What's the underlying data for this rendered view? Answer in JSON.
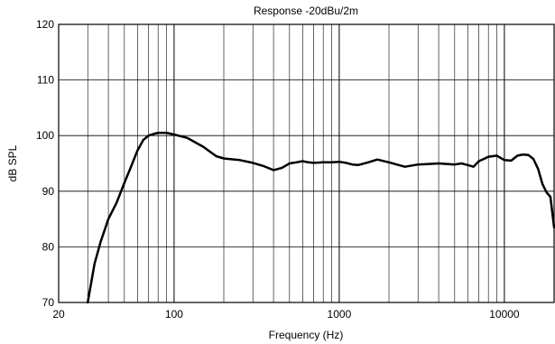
{
  "chart_data": {
    "type": "line",
    "title": "Response -20dBu/2m",
    "xlabel": "Frequency (Hz)",
    "ylabel": "dB SPL",
    "x_scale": "log",
    "xlim": [
      20,
      20000
    ],
    "ylim": [
      70,
      120
    ],
    "x_ticks": [
      20,
      100,
      1000,
      10000
    ],
    "x_tick_labels": [
      "20",
      "100",
      "1000",
      "10000"
    ],
    "y_ticks": [
      70,
      80,
      90,
      100,
      110,
      120
    ],
    "y_tick_labels": [
      "70",
      "80",
      "90",
      "100",
      "110",
      "120"
    ],
    "grid": true,
    "line_color": "#000000",
    "series": [
      {
        "x": [
          30,
          33,
          36,
          40,
          45,
          50,
          55,
          60,
          65,
          70,
          75,
          80,
          90,
          100,
          120,
          150,
          180,
          200,
          250,
          300,
          350,
          400,
          450,
          500,
          550,
          600,
          650,
          700,
          800,
          900,
          1000,
          1100,
          1200,
          1300,
          1500,
          1700,
          2000,
          2500,
          3000,
          3500,
          4000,
          4500,
          5000,
          5500,
          6000,
          6500,
          7000,
          7500,
          8000,
          9000,
          10000,
          11000,
          12000,
          13000,
          14000,
          15000,
          16000,
          17000,
          18000,
          19000,
          20000
        ],
        "y": [
          70,
          77,
          81,
          85,
          88,
          91.5,
          94.5,
          97.3,
          99.2,
          100,
          100.3,
          100.5,
          100.5,
          100.2,
          99.6,
          98,
          96.3,
          95.9,
          95.6,
          95.1,
          94.5,
          93.8,
          94.2,
          95,
          95.2,
          95.4,
          95.2,
          95.1,
          95.2,
          95.2,
          95.3,
          95.1,
          94.8,
          94.7,
          95.2,
          95.7,
          95.2,
          94.4,
          94.8,
          94.9,
          95,
          94.9,
          94.8,
          95,
          94.7,
          94.4,
          95.4,
          95.8,
          96.2,
          96.4,
          95.6,
          95.5,
          96.4,
          96.6,
          96.5,
          95.8,
          94,
          91.3,
          89.8,
          89,
          83.5
        ]
      }
    ]
  }
}
